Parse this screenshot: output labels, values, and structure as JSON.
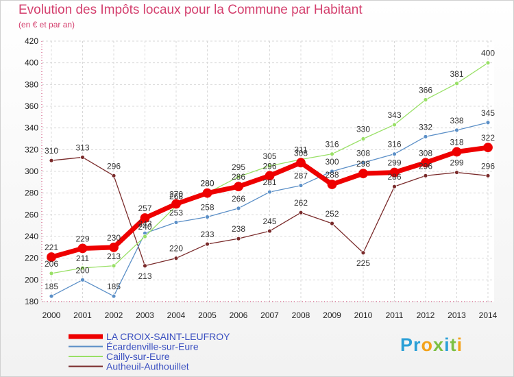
{
  "chart_data": {
    "type": "line",
    "title": "Evolution des Impôts locaux pour la Commune par Habitant",
    "subtitle": "(en € et par an)",
    "x": [
      "2000",
      "2001",
      "2002",
      "2003",
      "2004",
      "2005",
      "2006",
      "2007",
      "2008",
      "2009",
      "2010",
      "2011",
      "2012",
      "2013",
      "2014"
    ],
    "yticks": [
      180,
      200,
      220,
      240,
      260,
      280,
      300,
      320,
      340,
      360,
      380,
      400,
      420
    ],
    "ylim": [
      180,
      420
    ],
    "series": [
      {
        "name": "LA CROIX-SAINT-LEUFROY",
        "color": "#ee0000",
        "values": [
          221,
          229,
          230,
          257,
          270,
          280,
          286,
          296,
          308,
          288,
          298,
          299,
          308,
          318,
          322
        ]
      },
      {
        "name": "Écardenville-sur-Eure",
        "color": "#5b8fc7",
        "values": [
          185,
          200,
          185,
          243,
          253,
          258,
          266,
          281,
          287,
          300,
          308,
          316,
          332,
          338,
          345
        ]
      },
      {
        "name": "Cailly-sur-Eure",
        "color": "#99e066",
        "values": [
          206,
          211,
          213,
          240,
          268,
          280,
          295,
          305,
          311,
          316,
          330,
          343,
          366,
          381,
          400
        ]
      },
      {
        "name": "Autheuil-Authouillet",
        "color": "#7a2b2b",
        "values": [
          310,
          313,
          296,
          213,
          220,
          233,
          238,
          245,
          262,
          252,
          225,
          286,
          296,
          299,
          296
        ]
      }
    ]
  },
  "brand": {
    "p1": "Pr",
    "o": "o",
    "x": "x",
    "i": "i",
    "t": "t",
    "i2": "i"
  }
}
